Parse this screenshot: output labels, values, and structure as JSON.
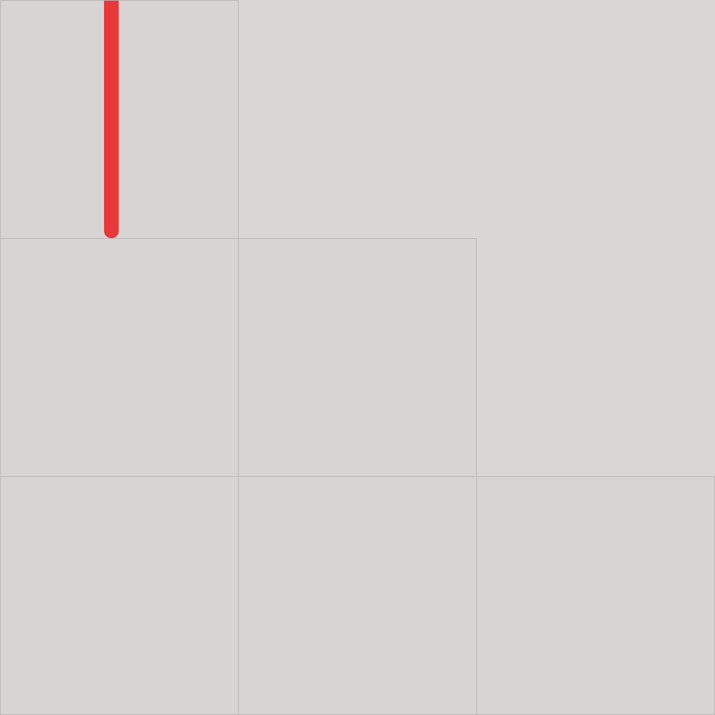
{
  "board": {
    "rows": [
      {
        "filled_cells": 1
      },
      {
        "filled_cells": 2
      },
      {
        "filled_cells": 3
      }
    ],
    "colors": {
      "background": "#d9d6d6",
      "cell": "#d8d4d3",
      "grid_line": "#bab6b6",
      "marker": "#e8393a"
    },
    "marker": {
      "row": 1,
      "column": 1,
      "shape": "vertical-bar"
    }
  }
}
